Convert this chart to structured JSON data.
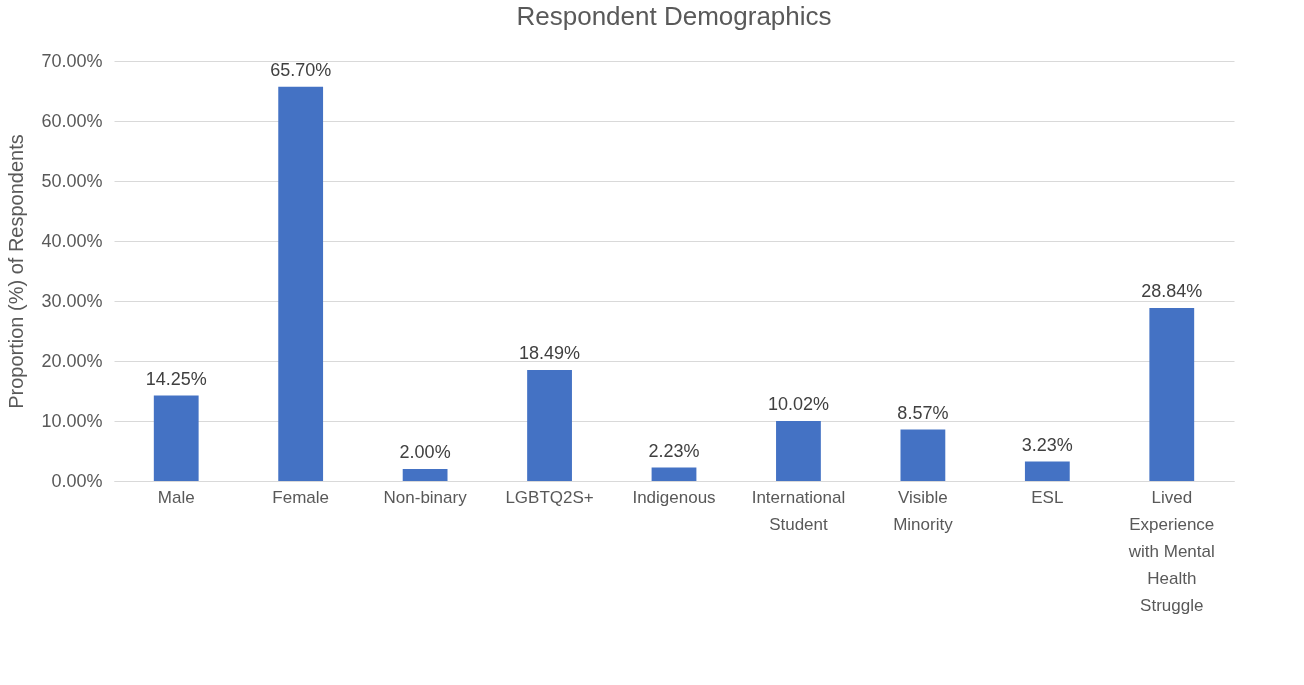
{
  "chart_data": {
    "type": "bar",
    "title": "Respondent Demographics",
    "ylabel": "Proportion (%) of Respondents",
    "categories": [
      "Male",
      "Female",
      "Non-binary",
      "LGBTQ2S+",
      "Indigenous",
      "International Student",
      "Visible Minority",
      "ESL",
      "Lived Experience with Mental Health Struggle"
    ],
    "values": [
      14.25,
      65.7,
      2.0,
      18.49,
      2.23,
      10.02,
      8.57,
      3.23,
      28.84
    ],
    "value_labels": [
      "14.25%",
      "65.70%",
      "2.00%",
      "18.49%",
      "2.23%",
      "10.02%",
      "8.57%",
      "3.23%",
      "28.84%"
    ],
    "color": "#4472c4",
    "ylim": [
      0,
      70
    ],
    "yticks": [
      {
        "value": 0,
        "label": "0.00%"
      },
      {
        "value": 10,
        "label": "10.00%"
      },
      {
        "value": 20,
        "label": "20.00%"
      },
      {
        "value": 30,
        "label": "30.00%"
      },
      {
        "value": 40,
        "label": "40.00%"
      },
      {
        "value": 50,
        "label": "50.00%"
      },
      {
        "value": 60,
        "label": "60.00%"
      },
      {
        "value": 70,
        "label": "70.00%"
      }
    ],
    "grid": "y"
  }
}
